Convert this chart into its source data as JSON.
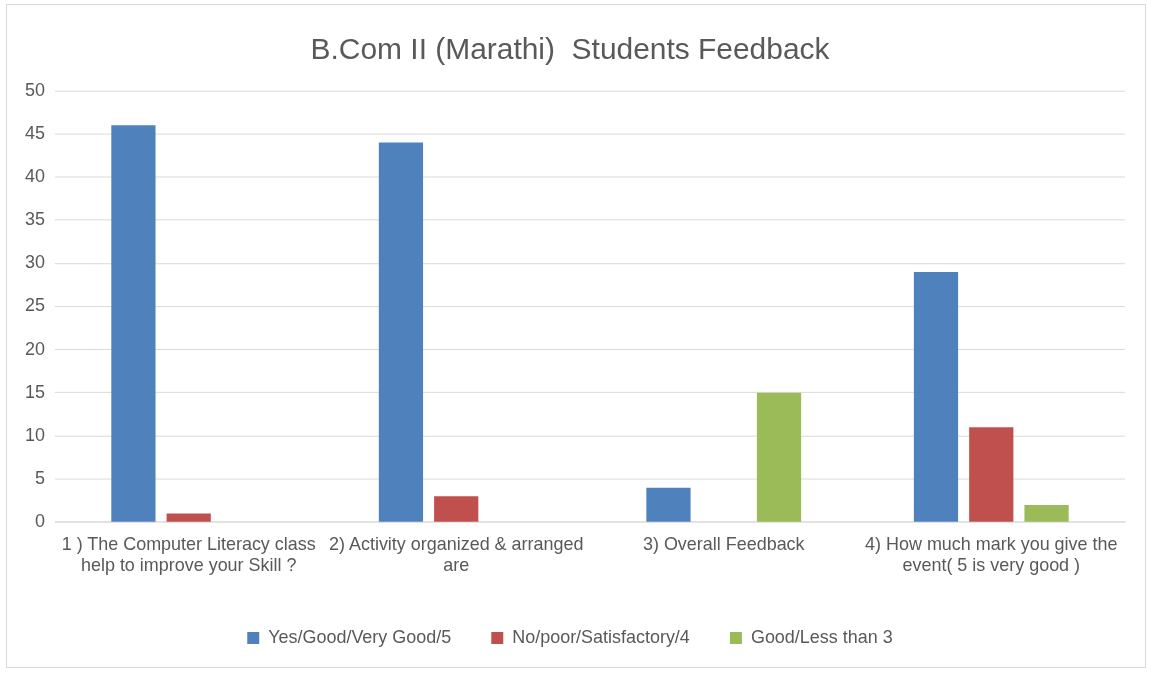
{
  "chart_data": {
    "type": "bar",
    "title": "B.Com II (Marathi)  Students Feedback",
    "categories": [
      "1 ) The Computer Literacy class help to improve your Skill ?",
      "2) Activity organized & arranged are",
      "3) Overall Feedback",
      "4) How much mark you give the event( 5 is very good )"
    ],
    "series": [
      {
        "name": "Yes/Good/Very Good/5",
        "color": "#4f81bd",
        "values": [
          46,
          44,
          4,
          29
        ]
      },
      {
        "name": "No/poor/Satisfactory/4",
        "color": "#c0504d",
        "values": [
          1,
          3,
          null,
          11
        ]
      },
      {
        "name": "Good/Less than 3",
        "color": "#9bbb59",
        "values": [
          null,
          null,
          15,
          2
        ]
      }
    ],
    "ylim": [
      0,
      50
    ],
    "yticks": [
      0,
      5,
      10,
      15,
      20,
      25,
      30,
      35,
      40,
      45,
      50
    ],
    "grid": "y",
    "legend": "bottom"
  }
}
